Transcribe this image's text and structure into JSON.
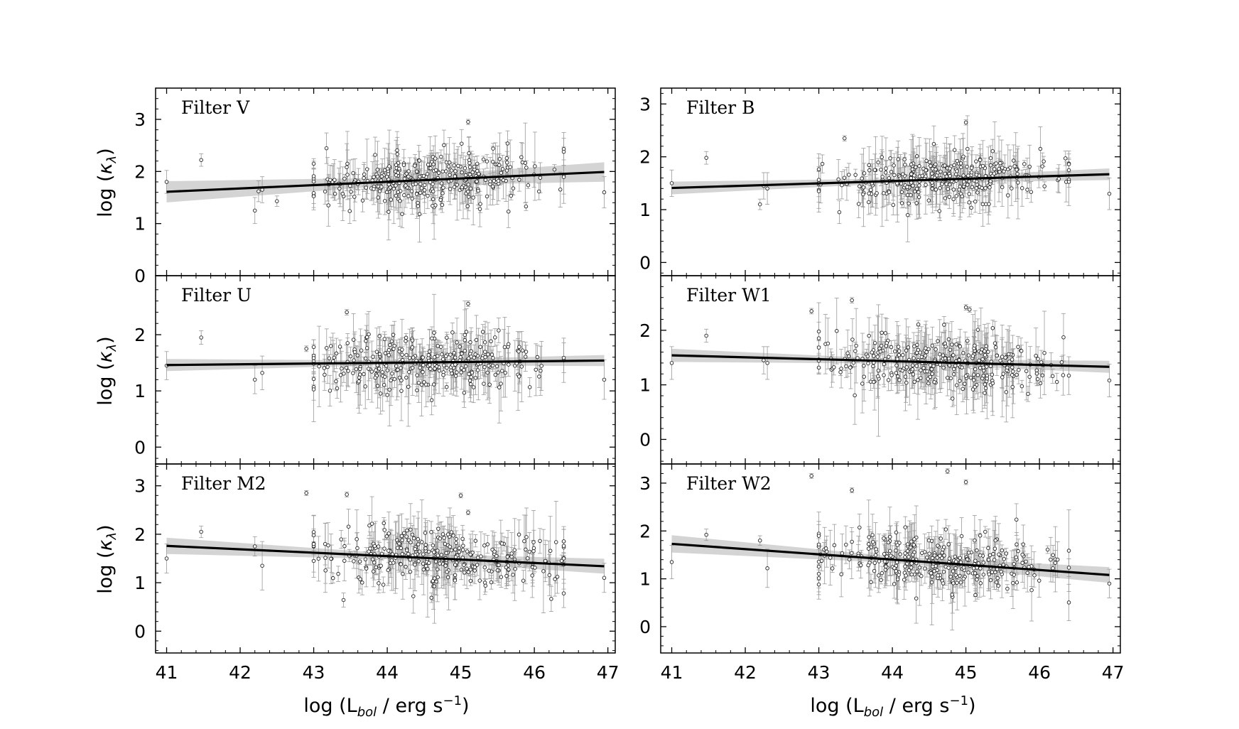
{
  "figure": {
    "ylabel_prefix": "log (",
    "ylabel_symbol": "κ",
    "ylabel_subscript": "λ",
    "ylabel_suffix": ")",
    "xlabel_prefix": "log (L",
    "xlabel_subscript": "bol",
    "xlabel_mid": " / erg s",
    "xlabel_superscript": "−1",
    "xlabel_suffix": ")"
  },
  "chart_data": [
    {
      "type": "scatter",
      "title": "Filter V",
      "column": 0,
      "row": 0,
      "xlim": [
        40.85,
        47.1
      ],
      "ylim": [
        0,
        3.6
      ],
      "xticks": [
        41,
        42,
        43,
        44,
        45,
        46,
        47
      ],
      "yticks": [
        0,
        1,
        2,
        3
      ],
      "fit": {
        "x": [
          41.0,
          46.95
        ],
        "y": [
          1.61,
          1.99
        ],
        "band_width": 0.17
      },
      "outliers": [
        [
          41.0,
          1.8,
          0.22
        ],
        [
          41.47,
          2.22,
          0.12
        ],
        [
          42.2,
          1.25,
          0.25
        ],
        [
          42.25,
          1.62,
          0.2
        ],
        [
          42.3,
          1.65,
          0.25
        ],
        [
          42.5,
          1.43,
          0.1
        ],
        [
          43.2,
          1.35,
          0.4
        ],
        [
          45.1,
          2.95,
          0.05
        ],
        [
          46.95,
          1.6,
          0.3
        ]
      ],
      "cloud": {
        "n": 300,
        "x_center": 44.6,
        "x_spread": 0.8,
        "y_spread": 0.24,
        "err_scale": 0.28,
        "seed": 11
      }
    },
    {
      "type": "scatter",
      "title": "Filter B",
      "column": 1,
      "row": 0,
      "xlim": [
        40.85,
        47.1
      ],
      "ylim": [
        -0.25,
        3.3
      ],
      "xticks": [
        41,
        42,
        43,
        44,
        45,
        46,
        47
      ],
      "yticks": [
        0,
        1,
        2,
        3
      ],
      "fit": {
        "x": [
          41.0,
          46.95
        ],
        "y": [
          1.41,
          1.67
        ],
        "band_width": 0.1
      },
      "outliers": [
        [
          41.0,
          1.5,
          0.25
        ],
        [
          41.47,
          1.98,
          0.12
        ],
        [
          42.2,
          1.1,
          0.1
        ],
        [
          42.25,
          1.45,
          0.25
        ],
        [
          42.3,
          1.4,
          0.3
        ],
        [
          43.35,
          2.35,
          0.05
        ],
        [
          45.0,
          2.65,
          0.05
        ],
        [
          46.95,
          1.3,
          0.3
        ]
      ],
      "cloud": {
        "n": 300,
        "x_center": 44.6,
        "x_spread": 0.8,
        "y_spread": 0.22,
        "err_scale": 0.27,
        "seed": 23
      }
    },
    {
      "type": "scatter",
      "title": "Filter U",
      "column": 0,
      "row": 1,
      "xlim": [
        40.85,
        47.1
      ],
      "ylim": [
        -0.3,
        3.05
      ],
      "xticks": [
        41,
        42,
        43,
        44,
        45,
        46,
        47
      ],
      "yticks": [
        0,
        1,
        2
      ],
      "fit": {
        "x": [
          41.0,
          46.95
        ],
        "y": [
          1.46,
          1.54
        ],
        "band_width": 0.09
      },
      "outliers": [
        [
          41.0,
          1.45,
          0.25
        ],
        [
          41.47,
          1.95,
          0.12
        ],
        [
          42.2,
          1.2,
          0.25
        ],
        [
          42.3,
          1.32,
          0.3
        ],
        [
          42.9,
          1.75,
          0.05
        ],
        [
          43.45,
          2.4,
          0.05
        ],
        [
          45.1,
          2.55,
          0.05
        ],
        [
          46.95,
          1.2,
          0.35
        ]
      ],
      "cloud": {
        "n": 300,
        "x_center": 44.6,
        "x_spread": 0.8,
        "y_spread": 0.24,
        "err_scale": 0.27,
        "seed": 37
      }
    },
    {
      "type": "scatter",
      "title": "Filter W1",
      "column": 1,
      "row": 1,
      "xlim": [
        40.85,
        47.1
      ],
      "ylim": [
        -0.45,
        3.0
      ],
      "xticks": [
        41,
        42,
        43,
        44,
        45,
        46,
        47
      ],
      "yticks": [
        0,
        1,
        2
      ],
      "fit": {
        "x": [
          41.0,
          46.95
        ],
        "y": [
          1.54,
          1.33
        ],
        "band_width": 0.1
      },
      "outliers": [
        [
          41.0,
          1.4,
          0.3
        ],
        [
          41.47,
          1.9,
          0.12
        ],
        [
          42.25,
          1.45,
          0.25
        ],
        [
          42.3,
          1.4,
          0.3
        ],
        [
          42.9,
          2.35,
          0.05
        ],
        [
          43.45,
          2.55,
          0.05
        ],
        [
          45.0,
          2.42,
          0.05
        ],
        [
          45.05,
          2.38,
          0.05
        ],
        [
          46.95,
          1.08,
          0.3
        ]
      ],
      "cloud": {
        "n": 300,
        "x_center": 44.6,
        "x_spread": 0.8,
        "y_spread": 0.26,
        "err_scale": 0.3,
        "seed": 51
      }
    },
    {
      "type": "scatter",
      "title": "Filter M2",
      "column": 0,
      "row": 2,
      "xlim": [
        40.85,
        47.1
      ],
      "ylim": [
        -0.45,
        3.45
      ],
      "xticks": [
        41,
        42,
        43,
        44,
        45,
        46,
        47
      ],
      "yticks": [
        0,
        1,
        2,
        3
      ],
      "fit": {
        "x": [
          41.0,
          46.95
        ],
        "y": [
          1.76,
          1.34
        ],
        "band_width": 0.14
      },
      "outliers": [
        [
          41.0,
          1.5,
          0.3
        ],
        [
          41.47,
          2.05,
          0.12
        ],
        [
          42.2,
          1.75,
          0.2
        ],
        [
          42.3,
          1.35,
          0.5
        ],
        [
          42.9,
          2.85,
          0.05
        ],
        [
          43.45,
          2.82,
          0.05
        ],
        [
          45.0,
          2.8,
          0.05
        ],
        [
          45.1,
          2.45,
          0.05
        ],
        [
          46.95,
          1.1,
          0.3
        ]
      ],
      "cloud": {
        "n": 300,
        "x_center": 44.6,
        "x_spread": 0.8,
        "y_spread": 0.28,
        "err_scale": 0.3,
        "seed": 67
      }
    },
    {
      "type": "scatter",
      "title": "Filter W2",
      "column": 1,
      "row": 2,
      "xlim": [
        40.85,
        47.1
      ],
      "ylim": [
        -0.55,
        3.4
      ],
      "xticks": [
        41,
        42,
        43,
        44,
        45,
        46,
        47
      ],
      "yticks": [
        0,
        1,
        2,
        3
      ],
      "fit": {
        "x": [
          41.0,
          46.95
        ],
        "y": [
          1.73,
          1.08
        ],
        "band_width": 0.15
      },
      "outliers": [
        [
          41.0,
          1.35,
          0.35
        ],
        [
          41.47,
          1.92,
          0.12
        ],
        [
          42.2,
          1.8,
          0.1
        ],
        [
          42.3,
          1.22,
          0.4
        ],
        [
          42.9,
          3.15,
          0.05
        ],
        [
          43.45,
          2.85,
          0.05
        ],
        [
          44.75,
          3.25,
          0.05
        ],
        [
          45.0,
          3.02,
          0.05
        ],
        [
          46.95,
          0.9,
          0.3
        ]
      ],
      "cloud": {
        "n": 300,
        "x_center": 44.6,
        "x_spread": 0.8,
        "y_spread": 0.3,
        "err_scale": 0.32,
        "seed": 83
      }
    }
  ]
}
